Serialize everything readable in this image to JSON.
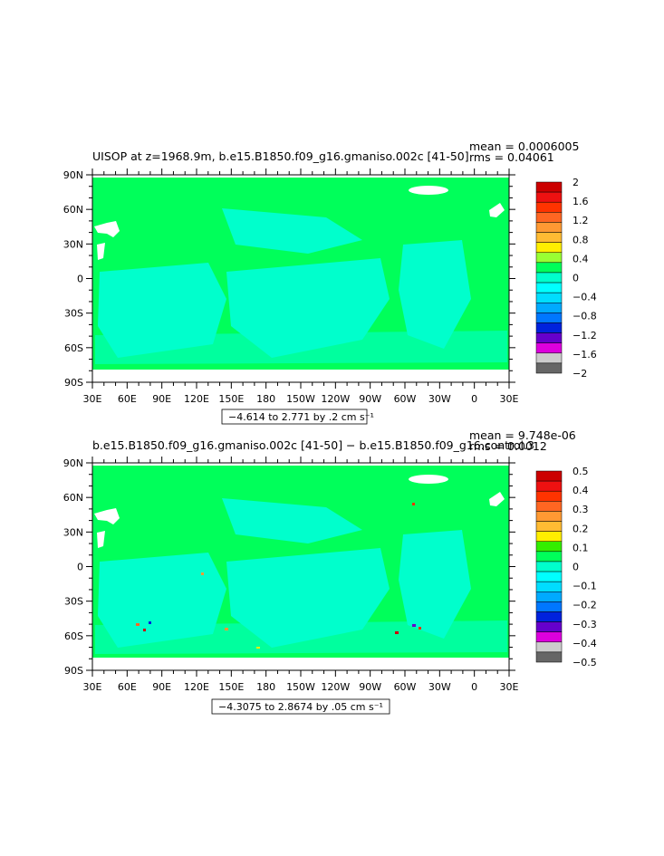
{
  "colors": {
    "ocean_green": "#00ff5a",
    "cyan_light": "#00ffe0",
    "land": "#ffffff",
    "frame": "#000000"
  },
  "chart_data": [
    {
      "type": "heatmap",
      "title": "UISOP at z=1968.9m, b.e15.B1850.f09_g16.gmaniso.002c [41-50]",
      "stat_mean": "mean = 0.0006005",
      "stat_rms": "rms = 0.04061",
      "range_note": "−4.614 to 2.771 by .2 cm s⁻¹",
      "x_ticks": [
        "30E",
        "60E",
        "90E",
        "120E",
        "150E",
        "180",
        "150W",
        "120W",
        "90W",
        "60W",
        "30W",
        "0",
        "30E"
      ],
      "y_ticks": [
        "90N",
        "60N",
        "30N",
        "0",
        "30S",
        "60S",
        "90S"
      ],
      "colorbar_labels": [
        "2",
        "1.6",
        "1.2",
        "0.8",
        "0.4",
        "0",
        "−0.4",
        "−0.8",
        "−1.2",
        "−1.6",
        "−2"
      ],
      "colorbar_colors": [
        "#cc0000",
        "#ee1111",
        "#ff3300",
        "#ff6622",
        "#ff9933",
        "#ffbb33",
        "#ffee00",
        "#99ff33",
        "#00ff5a",
        "#00ffcc",
        "#00ffff",
        "#00ddff",
        "#00aaff",
        "#0077ff",
        "#0022dd",
        "#6600cc",
        "#dd00dd",
        "#cccccc",
        "#666666"
      ],
      "xlim": [
        30,
        390
      ],
      "ylim": [
        -90,
        90
      ]
    },
    {
      "type": "heatmap",
      "title": "b.e15.B1850.f09_g16.gmaniso.002c [41-50] − b.e15.B1850.f09_g16.control.3",
      "stat_mean": "mean = 9.748e-06",
      "stat_rms": "rms = 0.0012",
      "range_note": "−4.3075 to 2.8674 by .05 cm s⁻¹",
      "x_ticks": [
        "30E",
        "60E",
        "90E",
        "120E",
        "150E",
        "180",
        "150W",
        "120W",
        "90W",
        "60W",
        "30W",
        "0",
        "30E"
      ],
      "y_ticks": [
        "90N",
        "60N",
        "30N",
        "0",
        "30S",
        "60S",
        "90S"
      ],
      "colorbar_labels": [
        "0.5",
        "0.4",
        "0.3",
        "0.2",
        "0.1",
        "0",
        "−0.1",
        "−0.2",
        "−0.3",
        "−0.4",
        "−0.5"
      ],
      "colorbar_colors": [
        "#cc0000",
        "#ee1111",
        "#ff3300",
        "#ff6622",
        "#ff9933",
        "#ffbb33",
        "#ffee00",
        "#33ee00",
        "#00ff5a",
        "#00ffcc",
        "#00ffff",
        "#00ddff",
        "#00aaff",
        "#0077ff",
        "#0022dd",
        "#6600cc",
        "#dd00dd",
        "#cccccc",
        "#666666"
      ],
      "xlim": [
        30,
        390
      ],
      "ylim": [
        -90,
        90
      ]
    }
  ]
}
